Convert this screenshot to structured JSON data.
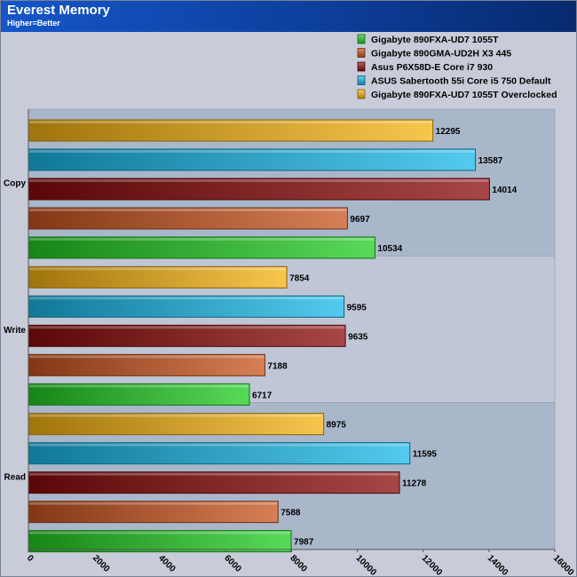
{
  "header": {
    "title": "Everest Memory",
    "subtitle": "Higher=Better"
  },
  "chart_data": {
    "type": "bar",
    "orientation": "horizontal",
    "title": "Everest Memory",
    "subtitle": "Higher=Better",
    "categories": [
      "Copy",
      "Write",
      "Read"
    ],
    "xlim": [
      0,
      16000
    ],
    "xticks": [
      0,
      2000,
      4000,
      6000,
      8000,
      10000,
      12000,
      14000,
      16000
    ],
    "legend_position": "top-right",
    "series": [
      {
        "name": "Gigabyte 890FXA-UD7 1055T",
        "color": "#22cc22",
        "values": [
          10534,
          6717,
          7987
        ]
      },
      {
        "name": "Gigabyte 890GMA-UD2H X3 445",
        "color": "#c8541e",
        "values": [
          9697,
          7188,
          7588
        ]
      },
      {
        "name": "Asus P6X58D-E Core i7 930",
        "color": "#8a0a0a",
        "values": [
          14014,
          9635,
          11278
        ]
      },
      {
        "name": "ASUS Sabertooth 55i Core i5 750 Default",
        "color": "#19b8e8",
        "values": [
          13587,
          9595,
          11595
        ]
      },
      {
        "name": "Gigabyte 890FXA-UD7 1055T Overclocked",
        "color": "#f5b312",
        "values": [
          12295,
          7854,
          8975
        ]
      }
    ]
  }
}
